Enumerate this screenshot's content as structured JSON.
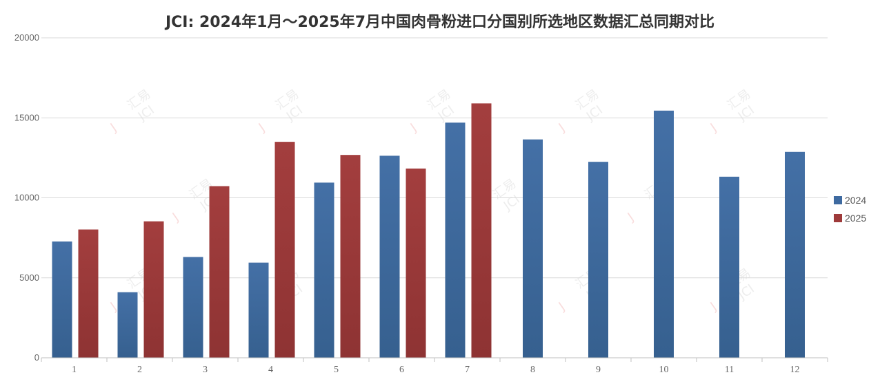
{
  "chart_data": {
    "type": "bar",
    "title": "JCI: 2024年1月～2025年7月中国肉骨粉进口分国别所选地区数据汇总同期对比",
    "categories": [
      "1",
      "2",
      "3",
      "4",
      "5",
      "6",
      "7",
      "8",
      "9",
      "10",
      "11",
      "12"
    ],
    "series": [
      {
        "name": "2024",
        "color": "#3e6aa0",
        "values": [
          7270,
          4100,
          6300,
          5950,
          10950,
          12630,
          14700,
          13650,
          12250,
          15450,
          11320,
          12870
        ]
      },
      {
        "name": "2025",
        "color": "#9e3a3a",
        "values": [
          8020,
          8530,
          10730,
          13500,
          12680,
          11830,
          15900,
          null,
          null,
          null,
          null,
          null
        ]
      }
    ],
    "ylim": [
      0,
      20000
    ],
    "yticks": [
      0,
      5000,
      10000,
      15000,
      20000
    ],
    "grid": true,
    "legend_position": "right",
    "xlabel": "",
    "ylabel": ""
  },
  "watermark": {
    "text": "汇易",
    "sub": "JCI"
  }
}
